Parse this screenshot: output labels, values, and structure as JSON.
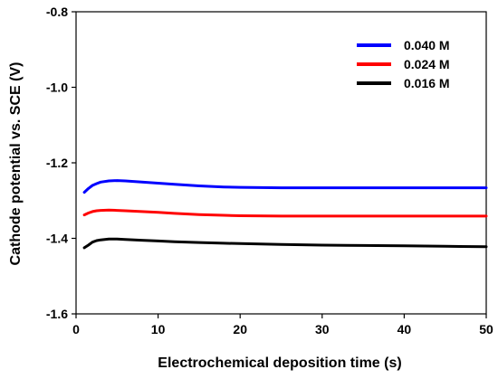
{
  "chart_data": {
    "type": "line",
    "title": "",
    "xlabel": "Electrochemical deposition time (s)",
    "ylabel": "Cathode potential vs. SCE (V)",
    "xlim": [
      0,
      50
    ],
    "ylim": [
      -1.6,
      -0.8
    ],
    "x_ticks": [
      0,
      10,
      20,
      30,
      40,
      50
    ],
    "x_tick_labels": [
      "0",
      "10",
      "20",
      "30",
      "40",
      "50"
    ],
    "y_ticks": [
      -0.8,
      -1.0,
      -1.2,
      -1.4,
      -1.6
    ],
    "y_tick_labels": [
      "-0.8",
      "-1.0",
      "-1.2",
      "-1.4",
      "-1.6"
    ],
    "grid": false,
    "legend_position": "top-right",
    "series": [
      {
        "name": "0.040 M",
        "color": "#0000ff",
        "x": [
          1,
          1.5,
          2,
          2.5,
          3,
          4,
          5,
          6,
          8,
          10,
          12,
          15,
          18,
          20,
          25,
          30,
          35,
          40,
          45,
          50
        ],
        "y": [
          -1.278,
          -1.268,
          -1.26,
          -1.255,
          -1.251,
          -1.248,
          -1.247,
          -1.248,
          -1.251,
          -1.254,
          -1.257,
          -1.261,
          -1.264,
          -1.265,
          -1.266,
          -1.266,
          -1.266,
          -1.266,
          -1.266,
          -1.266
        ]
      },
      {
        "name": "0.024 M",
        "color": "#ff0000",
        "x": [
          1,
          1.5,
          2,
          2.5,
          3,
          4,
          5,
          6,
          8,
          10,
          12,
          15,
          18,
          20,
          25,
          30,
          35,
          40,
          45,
          50
        ],
        "y": [
          -1.338,
          -1.333,
          -1.329,
          -1.327,
          -1.326,
          -1.325,
          -1.326,
          -1.327,
          -1.329,
          -1.331,
          -1.334,
          -1.337,
          -1.339,
          -1.34,
          -1.341,
          -1.341,
          -1.341,
          -1.341,
          -1.341,
          -1.341
        ]
      },
      {
        "name": "0.016 M",
        "color": "#000000",
        "x": [
          1,
          1.5,
          2,
          2.5,
          3,
          4,
          5,
          6,
          8,
          10,
          12,
          15,
          18,
          20,
          25,
          30,
          35,
          40,
          45,
          50
        ],
        "y": [
          -1.425,
          -1.418,
          -1.41,
          -1.406,
          -1.404,
          -1.402,
          -1.402,
          -1.403,
          -1.405,
          -1.407,
          -1.409,
          -1.411,
          -1.413,
          -1.414,
          -1.416,
          -1.418,
          -1.419,
          -1.42,
          -1.421,
          -1.422
        ]
      }
    ]
  }
}
